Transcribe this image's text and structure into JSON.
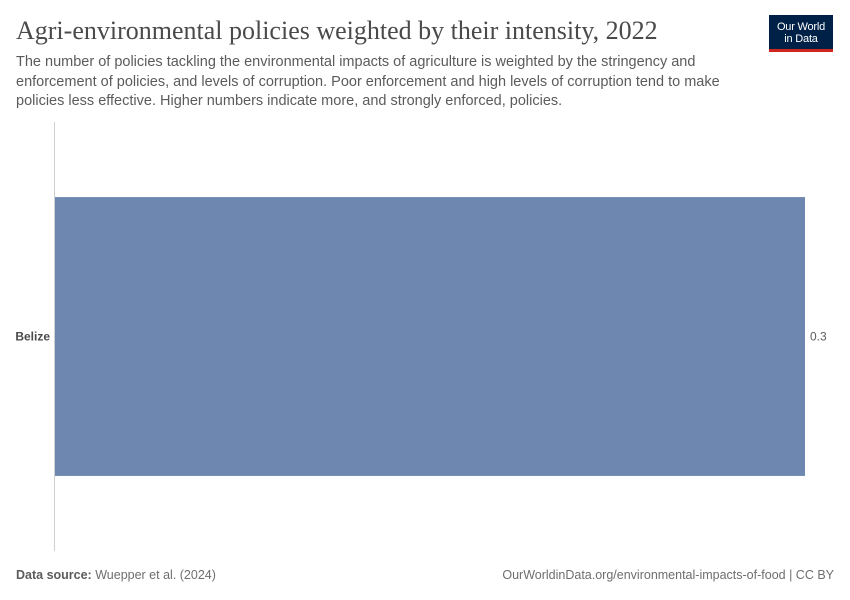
{
  "header": {
    "title": "Agri-environmental policies weighted by their intensity, 2022",
    "subtitle": "The number of policies tackling the environmental impacts of agriculture is weighted by the stringency and enforcement of policies, and levels of corruption. Poor enforcement and high levels of corruption tend to make policies less effective. Higher numbers indicate more, and strongly enforced, policies.",
    "logo_line1": "Our World",
    "logo_line2": "in Data"
  },
  "colors": {
    "bar": "#6d87b0",
    "axis": "#d0d0d0",
    "logo_bg": "#002147",
    "logo_accent": "#ce261e"
  },
  "chart_data": {
    "type": "bar",
    "orientation": "horizontal",
    "title": "Agri-environmental policies weighted by their intensity, 2022",
    "categories": [
      "Belize"
    ],
    "values": [
      0.3
    ],
    "value_labels": [
      "0.3"
    ],
    "xlim": [
      0,
      0.3
    ],
    "grid": false,
    "legend": "none"
  },
  "footer": {
    "source_label": "Data source:",
    "source_value": "Wuepper et al. (2024)",
    "url_license": "OurWorldinData.org/environmental-impacts-of-food | CC BY"
  }
}
